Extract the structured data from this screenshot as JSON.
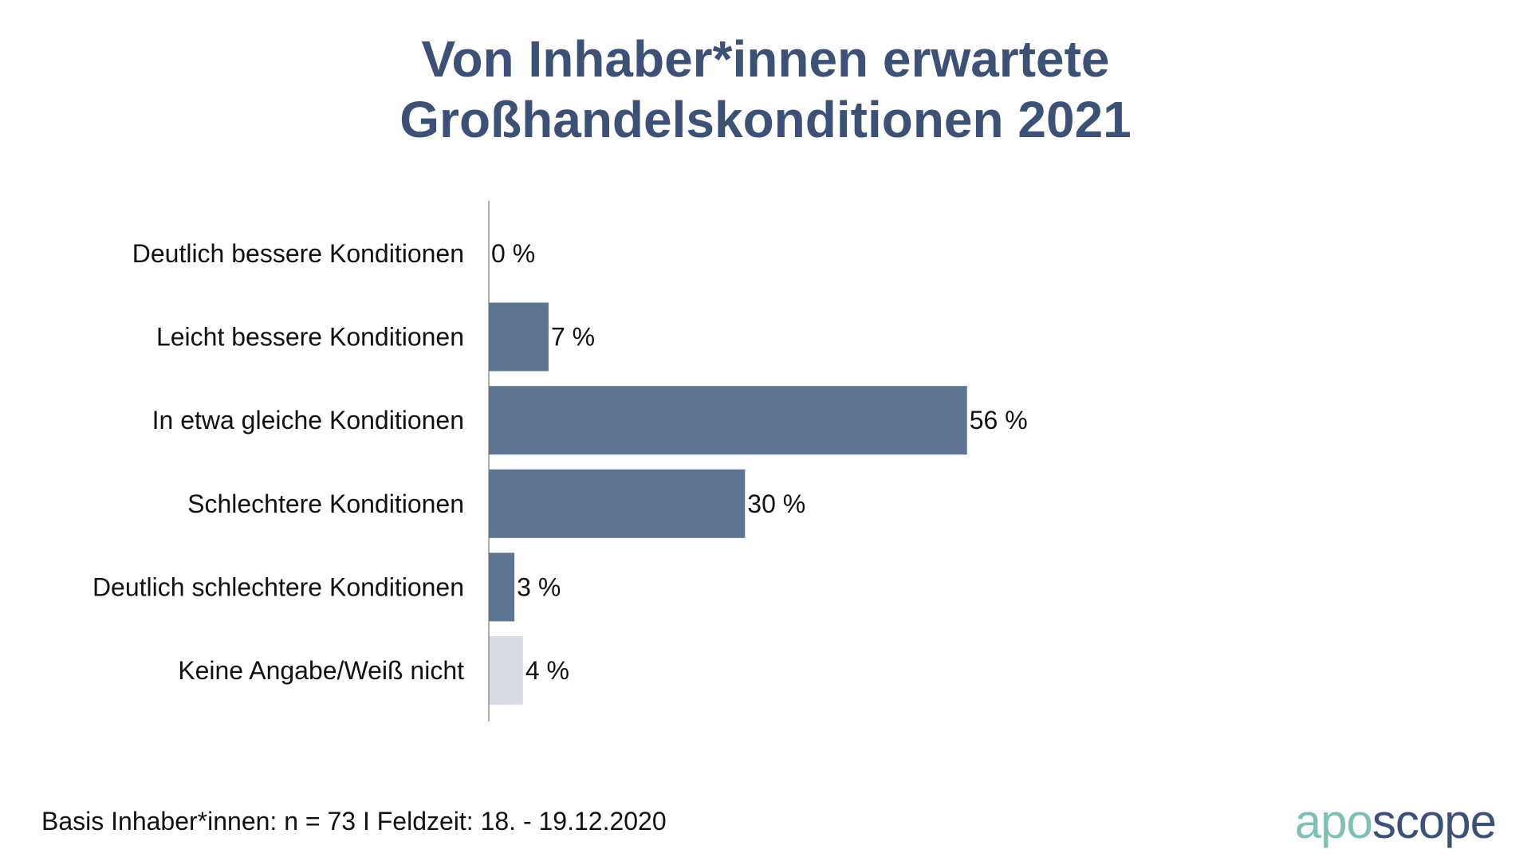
{
  "chart_data": {
    "type": "bar",
    "orientation": "horizontal",
    "title": [
      "Von Inhaber*innen erwartete",
      "Großhandelskonditionen 2021"
    ],
    "categories": [
      "Deutlich bessere Konditionen",
      "Leicht bessere Konditionen",
      "In etwa gleiche Konditionen",
      "Schlechtere Konditionen",
      "Deutlich schlechtere Konditionen",
      "Keine Angabe/Weiß nicht"
    ],
    "values": [
      0,
      7,
      56,
      30,
      3,
      4
    ],
    "value_labels": [
      "0 %",
      "7 %",
      "56 %",
      "30 %",
      "3 %",
      "4 %"
    ],
    "bar_colors": [
      "#5f7491",
      "#5f7491",
      "#5f7491",
      "#5f7491",
      "#5f7491",
      "#d9dce3"
    ],
    "xlabel": "",
    "ylabel": "",
    "xlim": [
      0,
      100
    ],
    "grid": false
  },
  "footer": "Basis Inhaber*innen: n = 73 I Feldzeit: 18. - 19.12.2020",
  "logo": {
    "part1": "apo",
    "part2": "scope",
    "color1": "#7fbfb5",
    "color2": "#3d5076"
  },
  "colors": {
    "title": "#3d5076"
  }
}
